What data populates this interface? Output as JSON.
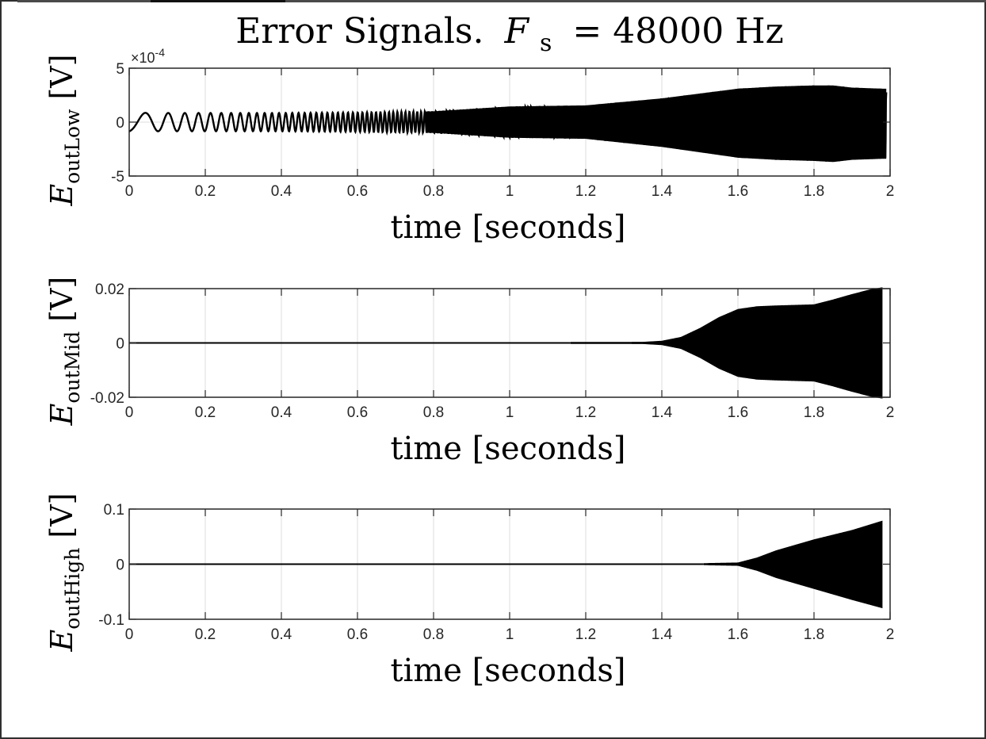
{
  "figure": {
    "title_text": "Error Signals.",
    "title_var": "F",
    "title_sub": "s",
    "title_rhs": "= 48000 Hz"
  },
  "chart_data": [
    {
      "type": "line",
      "name": "E_outLow",
      "ylabel": {
        "var": "E",
        "sub": "outLow",
        "unit": "[V]"
      },
      "xlabel": "time [seconds]",
      "xlim": [
        0,
        2
      ],
      "ylim": [
        -5,
        5
      ],
      "yscale_note": "×10",
      "yscale_exp": "-4",
      "xticks": [
        "0",
        "0.2",
        "0.4",
        "0.6",
        "0.8",
        "1",
        "1.2",
        "1.4",
        "1.6",
        "1.8",
        "2"
      ],
      "yticks": [
        -5,
        0,
        5
      ],
      "ytick_labels": [
        "-5",
        "0",
        "5"
      ],
      "grid": true,
      "signal": "chirp",
      "envelope_t": [
        0.0,
        0.05,
        0.2,
        0.4,
        0.6,
        0.8,
        1.0,
        1.2,
        1.4,
        1.6,
        1.7,
        1.8,
        1.85,
        1.9,
        1.98
      ],
      "envelope_upper": [
        0.9,
        0.85,
        0.85,
        0.85,
        0.9,
        1.0,
        1.45,
        1.55,
        2.2,
        3.1,
        3.3,
        3.4,
        3.4,
        3.2,
        3.1
      ],
      "envelope_lower": [
        -0.9,
        -0.85,
        -0.85,
        -0.85,
        -0.9,
        -1.0,
        -1.45,
        -1.55,
        -2.3,
        -3.3,
        -3.5,
        -3.6,
        -3.7,
        -3.5,
        -3.4
      ]
    },
    {
      "type": "line",
      "name": "E_outMid",
      "ylabel": {
        "var": "E",
        "sub": "outMid",
        "unit": "[V]"
      },
      "xlabel": "time [seconds]",
      "xlim": [
        0,
        2
      ],
      "ylim": [
        -0.02,
        0.02
      ],
      "xticks": [
        "0",
        "0.2",
        "0.4",
        "0.6",
        "0.8",
        "1",
        "1.2",
        "1.4",
        "1.6",
        "1.8",
        "2"
      ],
      "yticks": [
        -0.02,
        0,
        0.02
      ],
      "ytick_labels": [
        "-0.02",
        "0",
        "0.02"
      ],
      "grid": true,
      "signal": "burst",
      "envelope_t": [
        0.0,
        1.16,
        1.17,
        1.35,
        1.4,
        1.45,
        1.5,
        1.55,
        1.6,
        1.65,
        1.7,
        1.8,
        1.85,
        1.9,
        1.95,
        1.98
      ],
      "envelope_upper": [
        0,
        0,
        0.0003,
        0.0004,
        0.0008,
        0.0022,
        0.0055,
        0.0095,
        0.0125,
        0.0135,
        0.0138,
        0.0142,
        0.016,
        0.018,
        0.0198,
        0.0205
      ],
      "envelope_lower": [
        0,
        0,
        -0.0003,
        -0.0004,
        -0.0008,
        -0.0022,
        -0.0055,
        -0.0095,
        -0.0125,
        -0.0135,
        -0.0138,
        -0.0142,
        -0.016,
        -0.018,
        -0.0198,
        -0.0205
      ]
    },
    {
      "type": "line",
      "name": "E_outHigh",
      "ylabel": {
        "var": "E",
        "sub": "outHigh",
        "unit": "[V]"
      },
      "xlabel": "time [seconds]",
      "xlim": [
        0,
        2
      ],
      "ylim": [
        -0.1,
        0.1
      ],
      "xticks": [
        "0",
        "0.2",
        "0.4",
        "0.6",
        "0.8",
        "1",
        "1.2",
        "1.4",
        "1.6",
        "1.8",
        "2"
      ],
      "yticks": [
        -0.1,
        0,
        0.1
      ],
      "ytick_labels": [
        "-0.1",
        "0",
        "0.1"
      ],
      "grid": true,
      "signal": "burst",
      "envelope_t": [
        0.0,
        1.51,
        1.52,
        1.6,
        1.65,
        1.7,
        1.8,
        1.9,
        1.98
      ],
      "envelope_upper": [
        0,
        0,
        0.002,
        0.003,
        0.012,
        0.025,
        0.045,
        0.062,
        0.079
      ],
      "envelope_lower": [
        0,
        0,
        -0.002,
        -0.003,
        -0.012,
        -0.025,
        -0.045,
        -0.065,
        -0.08
      ]
    }
  ]
}
